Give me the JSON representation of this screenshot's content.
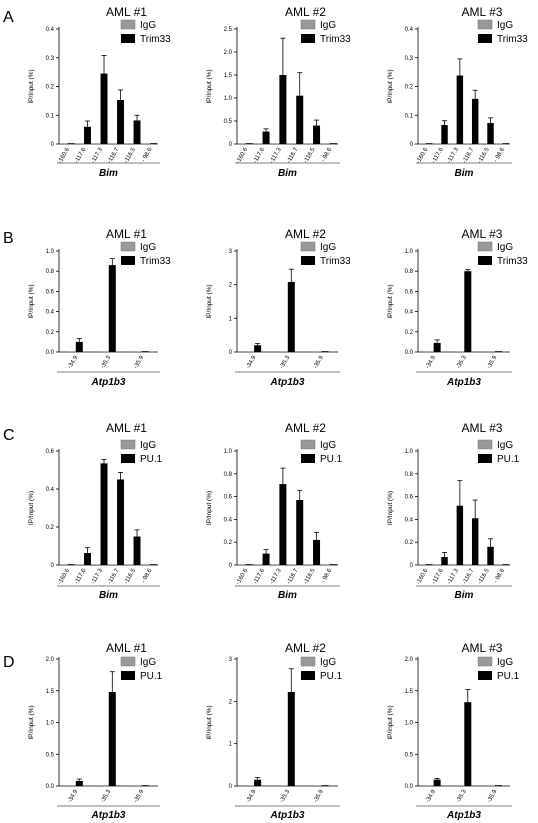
{
  "figure": {
    "colors": {
      "igg": "#999999",
      "target": "#000000",
      "axis": "#000000"
    },
    "legend_labels": {
      "igg": "IgG"
    }
  },
  "chart_data": [
    {
      "type": "bar",
      "panel": "A",
      "title": "AML #1",
      "ylabel": "IP/Input (%)",
      "xlabel": "Bim",
      "legend": [
        "IgG",
        "Trim33"
      ],
      "categories": [
        "-160.6",
        "-117.6",
        "-117.3",
        "-116.7",
        "-116.5",
        "- 98.6"
      ],
      "yticks": [
        "0",
        "0.1",
        "0.2",
        "0.3",
        "0.4"
      ],
      "ylim": [
        0,
        0.4
      ],
      "series": [
        {
          "name": "IgG",
          "values": [
            0,
            0,
            0,
            0,
            0,
            0
          ],
          "errors": [
            0,
            0,
            0,
            0,
            0,
            0
          ]
        },
        {
          "name": "Trim33",
          "values": [
            0,
            0.06,
            0.245,
            0.153,
            0.082,
            0
          ],
          "errors": [
            0,
            0.02,
            0.063,
            0.035,
            0.018,
            0
          ]
        }
      ]
    },
    {
      "type": "bar",
      "panel": "A",
      "title": "AML #2",
      "ylabel": "IP/Input (%)",
      "xlabel": "Bim",
      "legend": [
        "IgG",
        "Trim33"
      ],
      "categories": [
        "-160.6",
        "-117.6",
        "-117.3",
        "-116.7",
        "-116.5",
        "- 98.6"
      ],
      "yticks": [
        "0",
        "0.5",
        "1.0",
        "1.5",
        "2.0",
        "2.5"
      ],
      "ylim": [
        0,
        2.5
      ],
      "series": [
        {
          "name": "IgG",
          "values": [
            0,
            0,
            0,
            0,
            0,
            0
          ],
          "errors": [
            0,
            0,
            0,
            0,
            0,
            0
          ]
        },
        {
          "name": "Trim33",
          "values": [
            0,
            0.27,
            1.5,
            1.05,
            0.4,
            0
          ],
          "errors": [
            0,
            0.06,
            0.8,
            0.5,
            0.12,
            0
          ]
        }
      ]
    },
    {
      "type": "bar",
      "panel": "A",
      "title": "AML #3",
      "ylabel": "IP/Input (%)",
      "xlabel": "Bim",
      "legend": [
        "IgG",
        "Trim33"
      ],
      "categories": [
        "-160.6",
        "-117.6",
        "-117.3",
        "-116.7",
        "-116.5",
        "- 98.6"
      ],
      "yticks": [
        "0",
        "0.1",
        "0.2",
        "0.3",
        "0.4"
      ],
      "ylim": [
        0,
        0.4
      ],
      "series": [
        {
          "name": "IgG",
          "values": [
            0,
            0,
            0,
            0,
            0,
            0
          ],
          "errors": [
            0,
            0,
            0,
            0,
            0,
            0
          ]
        },
        {
          "name": "Trim33",
          "values": [
            0,
            0.066,
            0.238,
            0.157,
            0.073,
            0
          ],
          "errors": [
            0,
            0.015,
            0.058,
            0.03,
            0.018,
            0
          ]
        }
      ]
    },
    {
      "type": "bar",
      "panel": "B",
      "title": "AML #1",
      "ylabel": "IP/Input (%)",
      "xlabel": "Atp1b3",
      "legend": [
        "IgG",
        "Trim33"
      ],
      "categories": [
        "-34.9",
        "-35.3",
        "-35.9"
      ],
      "yticks": [
        "0.0",
        "0.2",
        "0.4",
        "0.6",
        "0.8",
        "1.0"
      ],
      "ylim": [
        0,
        1.0
      ],
      "series": [
        {
          "name": "IgG",
          "values": [
            0,
            0,
            0
          ],
          "errors": [
            0,
            0,
            0
          ]
        },
        {
          "name": "Trim33",
          "values": [
            0.1,
            0.86,
            0
          ],
          "errors": [
            0.035,
            0.065,
            0
          ]
        }
      ]
    },
    {
      "type": "bar",
      "panel": "B",
      "title": "AML #2",
      "ylabel": "IP/Input (%)",
      "xlabel": "Atp1b3",
      "legend": [
        "IgG",
        "Trim33"
      ],
      "categories": [
        "-34.9",
        "-35.3",
        "-35.9"
      ],
      "yticks": [
        "0",
        "1",
        "2",
        "3"
      ],
      "ylim": [
        0,
        3
      ],
      "series": [
        {
          "name": "IgG",
          "values": [
            0,
            0,
            0
          ],
          "errors": [
            0,
            0,
            0
          ]
        },
        {
          "name": "Trim33",
          "values": [
            0.2,
            2.08,
            0
          ],
          "errors": [
            0.05,
            0.38,
            0
          ]
        }
      ]
    },
    {
      "type": "bar",
      "panel": "B",
      "title": "AML #3",
      "ylabel": "IP/Input (%)",
      "xlabel": "Atp1b3",
      "legend": [
        "IgG",
        "Trim33"
      ],
      "categories": [
        "-34.9",
        "-35.3",
        "-35.9"
      ],
      "yticks": [
        "0.0",
        "0.2",
        "0.4",
        "0.6",
        "0.8",
        "1.0"
      ],
      "ylim": [
        0,
        1.0
      ],
      "series": [
        {
          "name": "IgG",
          "values": [
            0,
            0,
            0
          ],
          "errors": [
            0,
            0,
            0
          ]
        },
        {
          "name": "Trim33",
          "values": [
            0.09,
            0.8,
            0
          ],
          "errors": [
            0.03,
            0.015,
            0
          ]
        }
      ]
    },
    {
      "type": "bar",
      "panel": "C",
      "title": "AML #1",
      "ylabel": "IP/Input (%)",
      "xlabel": "Bim",
      "legend": [
        "IgG",
        "PU.1"
      ],
      "categories": [
        "-160.6",
        "-117.6",
        "-117.3",
        "-116.7",
        "-116.5",
        "- 98.6"
      ],
      "yticks": [
        "0",
        "0.2",
        "0.4",
        "0.6"
      ],
      "ylim": [
        0,
        0.6
      ],
      "series": [
        {
          "name": "IgG",
          "values": [
            0,
            0,
            0,
            0,
            0,
            0
          ],
          "errors": [
            0,
            0,
            0,
            0,
            0,
            0
          ]
        },
        {
          "name": "PU.1",
          "values": [
            0,
            0.063,
            0.535,
            0.45,
            0.15,
            0
          ],
          "errors": [
            0,
            0.028,
            0.02,
            0.037,
            0.035,
            0
          ]
        }
      ]
    },
    {
      "type": "bar",
      "panel": "C",
      "title": "AML #2",
      "ylabel": "IP/Input (%)",
      "xlabel": "Bim",
      "legend": [
        "IgG",
        "PU.1"
      ],
      "categories": [
        "-160.6",
        "-117.6",
        "-117.3",
        "-116.7",
        "-116.5",
        "- 98.6"
      ],
      "yticks": [
        "0",
        "0.2",
        "0.4",
        "0.6",
        "0.8",
        "1.0"
      ],
      "ylim": [
        0,
        1.0
      ],
      "series": [
        {
          "name": "IgG",
          "values": [
            0,
            0,
            0,
            0,
            0,
            0
          ],
          "errors": [
            0,
            0,
            0,
            0,
            0,
            0
          ]
        },
        {
          "name": "PU.1",
          "values": [
            0,
            0.1,
            0.71,
            0.57,
            0.22,
            0
          ],
          "errors": [
            0,
            0.035,
            0.14,
            0.085,
            0.065,
            0
          ]
        }
      ]
    },
    {
      "type": "bar",
      "panel": "C",
      "title": "AML #3",
      "ylabel": "IP/Input (%)",
      "xlabel": "Bim",
      "legend": [
        "IgG",
        "PU.1"
      ],
      "categories": [
        "-160.6",
        "-117.6",
        "-117.3",
        "-116.7",
        "-116.5",
        "- 98.6"
      ],
      "yticks": [
        "0",
        "0.2",
        "0.4",
        "0.6",
        "0.8",
        "1.0"
      ],
      "ylim": [
        0,
        1.0
      ],
      "series": [
        {
          "name": "IgG",
          "values": [
            0,
            0,
            0,
            0,
            0,
            0
          ],
          "errors": [
            0,
            0,
            0,
            0,
            0,
            0
          ]
        },
        {
          "name": "PU.1",
          "values": [
            0,
            0.07,
            0.52,
            0.41,
            0.16,
            0
          ],
          "errors": [
            0,
            0.04,
            0.22,
            0.16,
            0.07,
            0
          ]
        }
      ]
    },
    {
      "type": "bar",
      "panel": "D",
      "title": "AML #1",
      "ylabel": "IP/Input (%)",
      "xlabel": "Atp1b3",
      "legend": [
        "IgG",
        "PU.1"
      ],
      "categories": [
        "-34.9",
        "-35.3",
        "-35.9"
      ],
      "yticks": [
        "0.0",
        "0.5",
        "1.0",
        "1.5",
        "2.0"
      ],
      "ylim": [
        0,
        2.0
      ],
      "series": [
        {
          "name": "IgG",
          "values": [
            0,
            0,
            0
          ],
          "errors": [
            0,
            0,
            0
          ]
        },
        {
          "name": "PU.1",
          "values": [
            0.08,
            1.48,
            0
          ],
          "errors": [
            0.03,
            0.32,
            0
          ]
        }
      ]
    },
    {
      "type": "bar",
      "panel": "D",
      "title": "AML #2",
      "ylabel": "IP/Input (%)",
      "xlabel": "Atp1b3",
      "legend": [
        "IgG",
        "PU.1"
      ],
      "categories": [
        "-34.9",
        "-35.3",
        "-35.9"
      ],
      "yticks": [
        "0",
        "1",
        "2",
        "3"
      ],
      "ylim": [
        0,
        3
      ],
      "series": [
        {
          "name": "IgG",
          "values": [
            0,
            0,
            0
          ],
          "errors": [
            0,
            0,
            0
          ]
        },
        {
          "name": "PU.1",
          "values": [
            0.15,
            2.22,
            0
          ],
          "errors": [
            0.05,
            0.55,
            0
          ]
        }
      ]
    },
    {
      "type": "bar",
      "panel": "D",
      "title": "AML #3",
      "ylabel": "IP/Input (%)",
      "xlabel": "Atp1b3",
      "legend": [
        "IgG",
        "PU.1"
      ],
      "categories": [
        "-34.9",
        "-35.3",
        "-35.9"
      ],
      "yticks": [
        "0.0",
        "0.5",
        "1.0",
        "1.5",
        "2.0"
      ],
      "ylim": [
        0,
        2.0
      ],
      "series": [
        {
          "name": "IgG",
          "values": [
            0,
            0,
            0
          ],
          "errors": [
            0,
            0,
            0
          ]
        },
        {
          "name": "PU.1",
          "values": [
            0.1,
            1.32,
            0
          ],
          "errors": [
            0.02,
            0.2,
            0
          ]
        }
      ]
    }
  ]
}
